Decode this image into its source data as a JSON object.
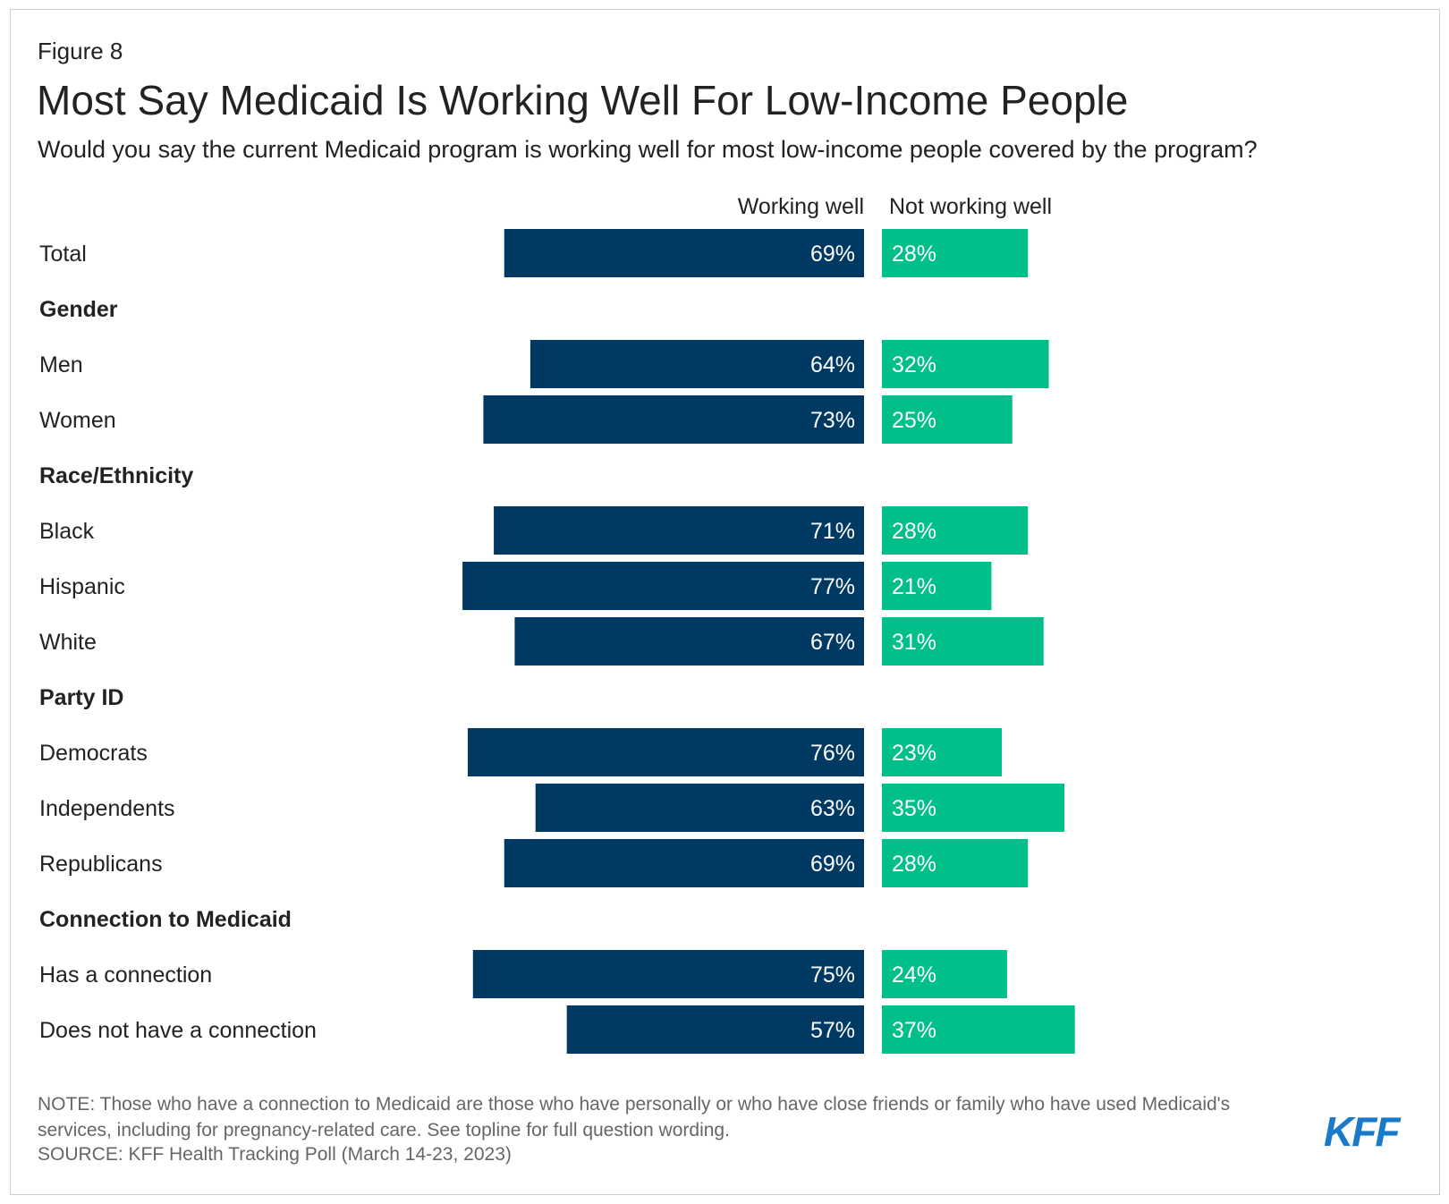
{
  "figure_label": "Figure 8",
  "title": "Most Say Medicaid Is Working Well For Low-Income People",
  "subtitle": "Would you say the current Medicaid program is working well for most low-income people covered by the program?",
  "colors": {
    "working_well": "#003a63",
    "not_working_well": "#00bf8a"
  },
  "chart_data": {
    "type": "bar",
    "orientation": "horizontal-diverging",
    "series": [
      {
        "name": "Working well",
        "values": [
          69,
          64,
          73,
          71,
          77,
          67,
          76,
          63,
          69,
          75,
          57
        ]
      },
      {
        "name": "Not working well",
        "values": [
          28,
          32,
          25,
          28,
          21,
          31,
          23,
          35,
          28,
          24,
          37
        ]
      }
    ],
    "rows": [
      {
        "label": "Total",
        "type": "data",
        "working_well": 69,
        "not_working_well": 28,
        "ww_label": "69%",
        "nw_label": "28%"
      },
      {
        "label": "Gender",
        "type": "header"
      },
      {
        "label": "Men",
        "type": "data",
        "working_well": 64,
        "not_working_well": 32,
        "ww_label": "64%",
        "nw_label": "32%"
      },
      {
        "label": "Women",
        "type": "data",
        "working_well": 73,
        "not_working_well": 25,
        "ww_label": "73%",
        "nw_label": "25%"
      },
      {
        "label": "Race/Ethnicity",
        "type": "header"
      },
      {
        "label": "Black",
        "type": "data",
        "working_well": 71,
        "not_working_well": 28,
        "ww_label": "71%",
        "nw_label": "28%"
      },
      {
        "label": "Hispanic",
        "type": "data",
        "working_well": 77,
        "not_working_well": 21,
        "ww_label": "77%",
        "nw_label": "21%"
      },
      {
        "label": "White",
        "type": "data",
        "working_well": 67,
        "not_working_well": 31,
        "ww_label": "67%",
        "nw_label": "31%"
      },
      {
        "label": "Party ID",
        "type": "header"
      },
      {
        "label": "Democrats",
        "type": "data",
        "working_well": 76,
        "not_working_well": 23,
        "ww_label": "76%",
        "nw_label": "23%"
      },
      {
        "label": "Independents",
        "type": "data",
        "working_well": 63,
        "not_working_well": 35,
        "ww_label": "63%",
        "nw_label": "35%"
      },
      {
        "label": "Republicans",
        "type": "data",
        "working_well": 69,
        "not_working_well": 28,
        "ww_label": "69%",
        "nw_label": "28%"
      },
      {
        "label": "Connection to Medicaid",
        "type": "header"
      },
      {
        "label": "Has a connection",
        "type": "data",
        "working_well": 75,
        "not_working_well": 24,
        "ww_label": "75%",
        "nw_label": "24%"
      },
      {
        "label": "Does not have a connection",
        "type": "data",
        "working_well": 57,
        "not_working_well": 37,
        "ww_label": "57%",
        "nw_label": "37%"
      }
    ],
    "column_headers": [
      "Working well",
      "Not working well"
    ]
  },
  "note": "NOTE: Those who have a connection to Medicaid are those who have personally or who have close friends or family who have used Medicaid's services, including for pregnancy-related care. See topline for full question wording.",
  "source": "SOURCE: KFF Health Tracking Poll (March 14-23, 2023)",
  "logo_text": "KFF"
}
